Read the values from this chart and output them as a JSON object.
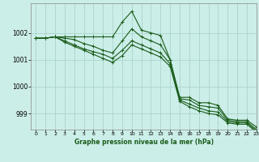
{
  "background_color": "#cceee8",
  "grid_color": "#aad4cc",
  "line_color": "#1a5c1a",
  "xlabel": "Graphe pression niveau de la mer (hPa)",
  "xlim": [
    -0.5,
    23
  ],
  "ylim": [
    998.4,
    1003.1
  ],
  "yticks": [
    999,
    1000,
    1001,
    1002
  ],
  "xticks": [
    0,
    1,
    2,
    3,
    4,
    5,
    6,
    7,
    8,
    9,
    10,
    11,
    12,
    13,
    14,
    15,
    16,
    17,
    18,
    19,
    20,
    21,
    22,
    23
  ],
  "series": [
    [
      1001.8,
      1001.8,
      1001.85,
      1001.85,
      1001.85,
      1001.85,
      1001.85,
      1001.85,
      1001.85,
      1002.4,
      1002.8,
      1002.1,
      1002.0,
      1001.9,
      1001.0,
      999.6,
      999.6,
      999.4,
      999.4,
      999.3,
      998.8,
      998.75,
      998.75,
      998.5
    ],
    [
      1001.8,
      1001.8,
      1001.85,
      1001.8,
      1001.75,
      1001.6,
      1001.5,
      1001.35,
      1001.25,
      1001.7,
      1002.15,
      1001.85,
      1001.7,
      1001.55,
      1001.0,
      999.55,
      999.5,
      999.3,
      999.25,
      999.2,
      998.75,
      998.7,
      998.7,
      998.4
    ],
    [
      1001.8,
      1001.8,
      1001.85,
      1001.7,
      1001.55,
      1001.4,
      1001.3,
      1001.2,
      1001.05,
      1001.35,
      1001.7,
      1001.55,
      1001.4,
      1001.25,
      1000.85,
      999.5,
      999.35,
      999.2,
      999.1,
      999.05,
      998.7,
      998.65,
      998.65,
      998.35
    ],
    [
      1001.8,
      1001.8,
      1001.85,
      1001.65,
      1001.5,
      1001.35,
      1001.2,
      1001.05,
      1000.9,
      1001.15,
      1001.55,
      1001.4,
      1001.25,
      1001.1,
      1000.75,
      999.45,
      999.25,
      999.1,
      999.0,
      998.95,
      998.65,
      998.6,
      998.6,
      998.3
    ]
  ]
}
